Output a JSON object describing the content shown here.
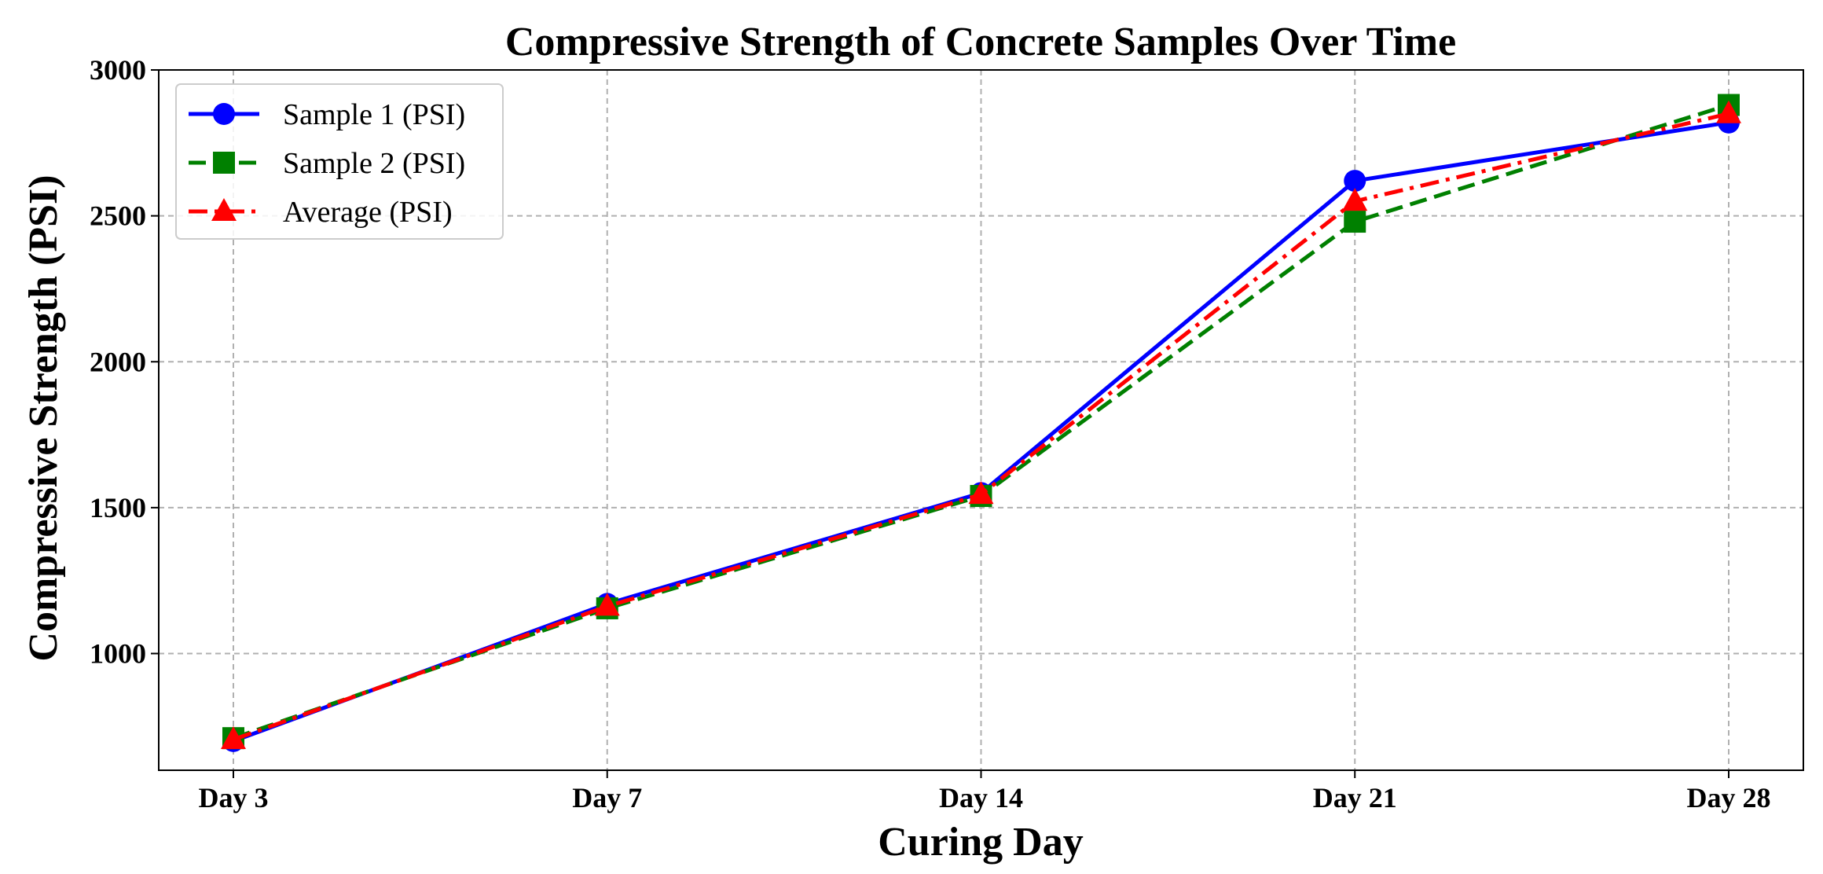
{
  "chart_data": {
    "type": "line",
    "title": "Compressive Strength of Concrete Samples Over Time",
    "xlabel": "Curing Day",
    "ylabel": "Compressive Strength (PSI)",
    "categories": [
      "Day 3",
      "Day 7",
      "Day 14",
      "Day 21",
      "Day 28"
    ],
    "ylim": [
      600,
      3000
    ],
    "yticks": [
      1000,
      1500,
      2000,
      2500,
      3000
    ],
    "grid": true,
    "legend_position": "top-left",
    "series": [
      {
        "name": "Sample 1 (PSI)",
        "values": [
          700,
          1170,
          1550,
          2620,
          2820
        ],
        "color": "#0000ff",
        "linestyle": "solid",
        "marker": "circle"
      },
      {
        "name": "Sample 2 (PSI)",
        "values": [
          710,
          1155,
          1540,
          2480,
          2880
        ],
        "color": "#008000",
        "linestyle": "dashed",
        "marker": "square"
      },
      {
        "name": "Average (PSI)",
        "values": [
          705,
          1162,
          1545,
          2550,
          2850
        ],
        "color": "#ff0000",
        "linestyle": "dashdot",
        "marker": "triangle"
      }
    ]
  }
}
